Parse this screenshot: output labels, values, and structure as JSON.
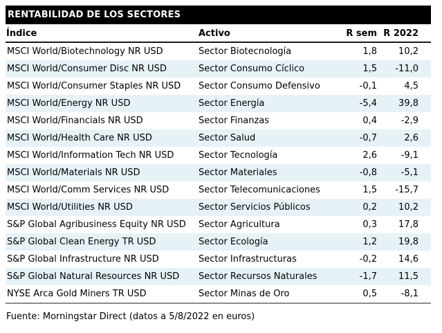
{
  "chart_data": {
    "type": "table",
    "title": "RENTABILIDAD DE LOS SECTORES",
    "columns": [
      "Índice",
      "Activo",
      "R sem",
      "R 2022"
    ],
    "rows": [
      {
        "indice": "MSCI World/Biotechnology NR USD",
        "activo": "Sector Biotecnología",
        "r_sem": "1,8",
        "r_2022": "10,2"
      },
      {
        "indice": "MSCI World/Consumer Disc NR USD",
        "activo": "Sector Consumo Cíclico",
        "r_sem": "1,5",
        "r_2022": "-11,0"
      },
      {
        "indice": "MSCI World/Consumer Staples NR USD",
        "activo": "Sector Consumo Defensivo",
        "r_sem": "-0,1",
        "r_2022": "4,5"
      },
      {
        "indice": "MSCI World/Energy NR USD",
        "activo": "Sector Energía",
        "r_sem": "-5,4",
        "r_2022": "39,8"
      },
      {
        "indice": "MSCI World/Financials NR USD",
        "activo": "Sector Finanzas",
        "r_sem": "0,4",
        "r_2022": "-2,9"
      },
      {
        "indice": "MSCI World/Health Care NR USD",
        "activo": "Sector Salud",
        "r_sem": "-0,7",
        "r_2022": "2,6"
      },
      {
        "indice": "MSCI World/Information Tech NR USD",
        "activo": "Sector Tecnología",
        "r_sem": "2,6",
        "r_2022": "-9,1"
      },
      {
        "indice": "MSCI World/Materials NR USD",
        "activo": "Sector Materiales",
        "r_sem": "-0,8",
        "r_2022": "-5,1"
      },
      {
        "indice": "MSCI World/Comm Services NR USD",
        "activo": "Sector Telecomunicaciones",
        "r_sem": "1,5",
        "r_2022": "-15,7"
      },
      {
        "indice": "MSCI World/Utilities NR USD",
        "activo": "Sector Servicios Públicos",
        "r_sem": "0,2",
        "r_2022": "10,2"
      },
      {
        "indice": "S&P Global Agribusiness Equity NR USD",
        "activo": "Sector Agricultura",
        "r_sem": "0,3",
        "r_2022": "17,8"
      },
      {
        "indice": "S&P Global Clean Energy TR USD",
        "activo": "Sector Ecología",
        "r_sem": "1,2",
        "r_2022": "19,8"
      },
      {
        "indice": "S&P Global Infrastructure NR USD",
        "activo": "Sector Infrastructuras",
        "r_sem": "-0,2",
        "r_2022": "14,6"
      },
      {
        "indice": "S&P Global Natural Resources NR USD",
        "activo": "Sector Recursos Naturales",
        "r_sem": "-1,7",
        "r_2022": "11,5"
      },
      {
        "indice": "NYSE Arca Gold Miners TR USD",
        "activo": "Sector Minas de Oro",
        "r_sem": "0,5",
        "r_2022": "-8,1"
      }
    ],
    "layout": {
      "striped": true,
      "stripe_pattern": "even rows shaded",
      "numeric_alignment": "right"
    }
  },
  "footer": {
    "source": "Fuente: Morningstar Direct (datos a 5/8/2022 en euros)"
  },
  "colors": {
    "title_bg": "#000000",
    "title_fg": "#ffffff",
    "stripe": "#e7f2f7",
    "rule_dark": "#1a1a1a",
    "rule_gray": "#8c8c8c",
    "text": "#000000"
  }
}
